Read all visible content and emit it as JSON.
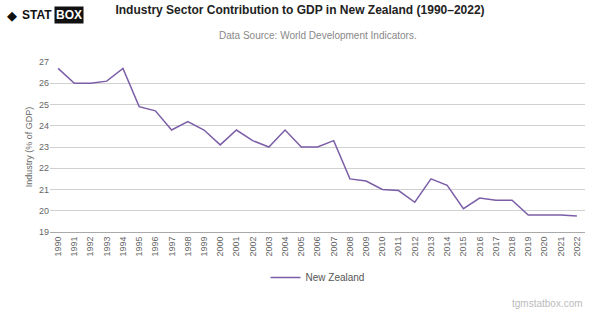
{
  "chart_data": {
    "type": "line",
    "title": "Industry Sector Contribution to GDP in New Zealand (1990–2022)",
    "subtitle": "Data Source: World Development Indicators.",
    "ylabel": "Industry (% of GDP)",
    "annotations": [
      "◆",
      "STAT",
      "BOX",
      "tgmstatbox.com"
    ],
    "x": [
      1990,
      1991,
      1992,
      1993,
      1994,
      1995,
      1996,
      1997,
      1998,
      1999,
      2000,
      2001,
      2002,
      2003,
      2004,
      2005,
      2006,
      2007,
      2008,
      2009,
      2010,
      2011,
      2012,
      2013,
      2014,
      2015,
      2016,
      2017,
      2018,
      2019,
      2020,
      2021,
      2022
    ],
    "series": [
      {
        "name": "New Zealand",
        "color": "#7B5EA7",
        "values": [
          26.7,
          26.0,
          26.0,
          26.1,
          26.7,
          24.9,
          24.7,
          23.8,
          24.2,
          23.8,
          23.1,
          23.8,
          23.3,
          23.0,
          23.8,
          23.0,
          23.0,
          23.3,
          21.5,
          21.4,
          21.0,
          20.95,
          20.4,
          21.5,
          21.2,
          20.1,
          20.6,
          20.5,
          20.5,
          19.8,
          19.8,
          19.8,
          19.75
        ]
      }
    ],
    "xlim": [
      1989.5,
      2022.5
    ],
    "xticks": [
      1990,
      1991,
      1992,
      1993,
      1994,
      1995,
      1996,
      1997,
      1998,
      1999,
      2000,
      2001,
      2002,
      2003,
      2004,
      2005,
      2006,
      2007,
      2008,
      2009,
      2010,
      2011,
      2012,
      2013,
      2014,
      2015,
      2016,
      2017,
      2018,
      2019,
      2020,
      2021,
      2022
    ],
    "ylim": [
      19,
      27
    ],
    "yticks": [
      19,
      20,
      21,
      22,
      23,
      24,
      25,
      26,
      27
    ],
    "grid": true,
    "legend": "bottom"
  }
}
